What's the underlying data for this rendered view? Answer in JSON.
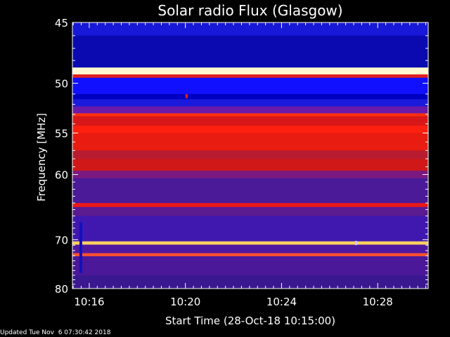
{
  "chart_data": {
    "type": "heatmap",
    "title": "Solar radio Flux (Glasgow)",
    "xlabel": "Start Time (28-Oct-18 10:15:00)",
    "ylabel": "Frequency [MHz]",
    "x_ticks": [
      "10:16",
      "10:20",
      "10:24",
      "10:28"
    ],
    "x_tick_minutes": [
      16,
      20,
      24,
      28
    ],
    "xlim_minutes": [
      15.3,
      30.1
    ],
    "y_ticks": [
      45,
      50,
      55,
      60,
      70,
      80
    ],
    "y_scale": "reciprocal",
    "ylim": [
      45,
      80
    ],
    "background_color": "#3b1a9c",
    "bands": [
      {
        "f_low": 45.0,
        "f_high": 46.0,
        "color": "#1818d8"
      },
      {
        "f_low": 46.0,
        "f_high": 48.6,
        "color": "#0a0ab0"
      },
      {
        "f_low": 48.6,
        "f_high": 49.2,
        "color": "#fff8d0"
      },
      {
        "f_low": 49.2,
        "f_high": 49.5,
        "color": "#e02020"
      },
      {
        "f_low": 49.5,
        "f_high": 51.0,
        "color": "#1010ff"
      },
      {
        "f_low": 51.0,
        "f_high": 51.5,
        "color": "#0000c0"
      },
      {
        "f_low": 51.5,
        "f_high": 52.2,
        "color": "#1a1adc"
      },
      {
        "f_low": 52.2,
        "f_high": 52.9,
        "color": "#6a1aa8"
      },
      {
        "f_low": 52.9,
        "f_high": 53.2,
        "color": "#ff3010"
      },
      {
        "f_low": 53.2,
        "f_high": 54.2,
        "color": "#d81818"
      },
      {
        "f_low": 54.2,
        "f_high": 55.0,
        "color": "#ff2010"
      },
      {
        "f_low": 55.0,
        "f_high": 57.0,
        "color": "#e81c10"
      },
      {
        "f_low": 57.0,
        "f_high": 58.0,
        "color": "#b81c30"
      },
      {
        "f_low": 58.0,
        "f_high": 59.5,
        "color": "#d01818"
      },
      {
        "f_low": 59.5,
        "f_high": 60.5,
        "color": "#7a1a80"
      },
      {
        "f_low": 60.5,
        "f_high": 64.0,
        "color": "#4a1a98"
      },
      {
        "f_low": 64.0,
        "f_high": 64.6,
        "color": "#e81818"
      },
      {
        "f_low": 64.6,
        "f_high": 66.0,
        "color": "#5a1a90"
      },
      {
        "f_low": 66.0,
        "f_high": 70.3,
        "color": "#4018b0"
      },
      {
        "f_low": 70.3,
        "f_high": 70.9,
        "color": "#ffd060"
      },
      {
        "f_low": 70.9,
        "f_high": 72.5,
        "color": "#5018a0"
      },
      {
        "f_low": 72.5,
        "f_high": 73.1,
        "color": "#ff5030"
      },
      {
        "f_low": 73.1,
        "f_high": 77.0,
        "color": "#4a1898"
      },
      {
        "f_low": 77.0,
        "f_high": 80.0,
        "color": "#3a1890"
      }
    ],
    "features": [
      {
        "kind": "vertical-streak",
        "minute": 15.65,
        "f_low": 67.0,
        "f_high": 76.5,
        "color": "#1010c0"
      },
      {
        "kind": "spot",
        "minute": 20.05,
        "freq": 51.2,
        "color": "#e02020"
      },
      {
        "kind": "spot",
        "minute": 27.1,
        "freq": 70.6,
        "color": "#c8c8ff"
      }
    ]
  },
  "footer": "Updated Tue Nov  6 07:30:42 2018"
}
